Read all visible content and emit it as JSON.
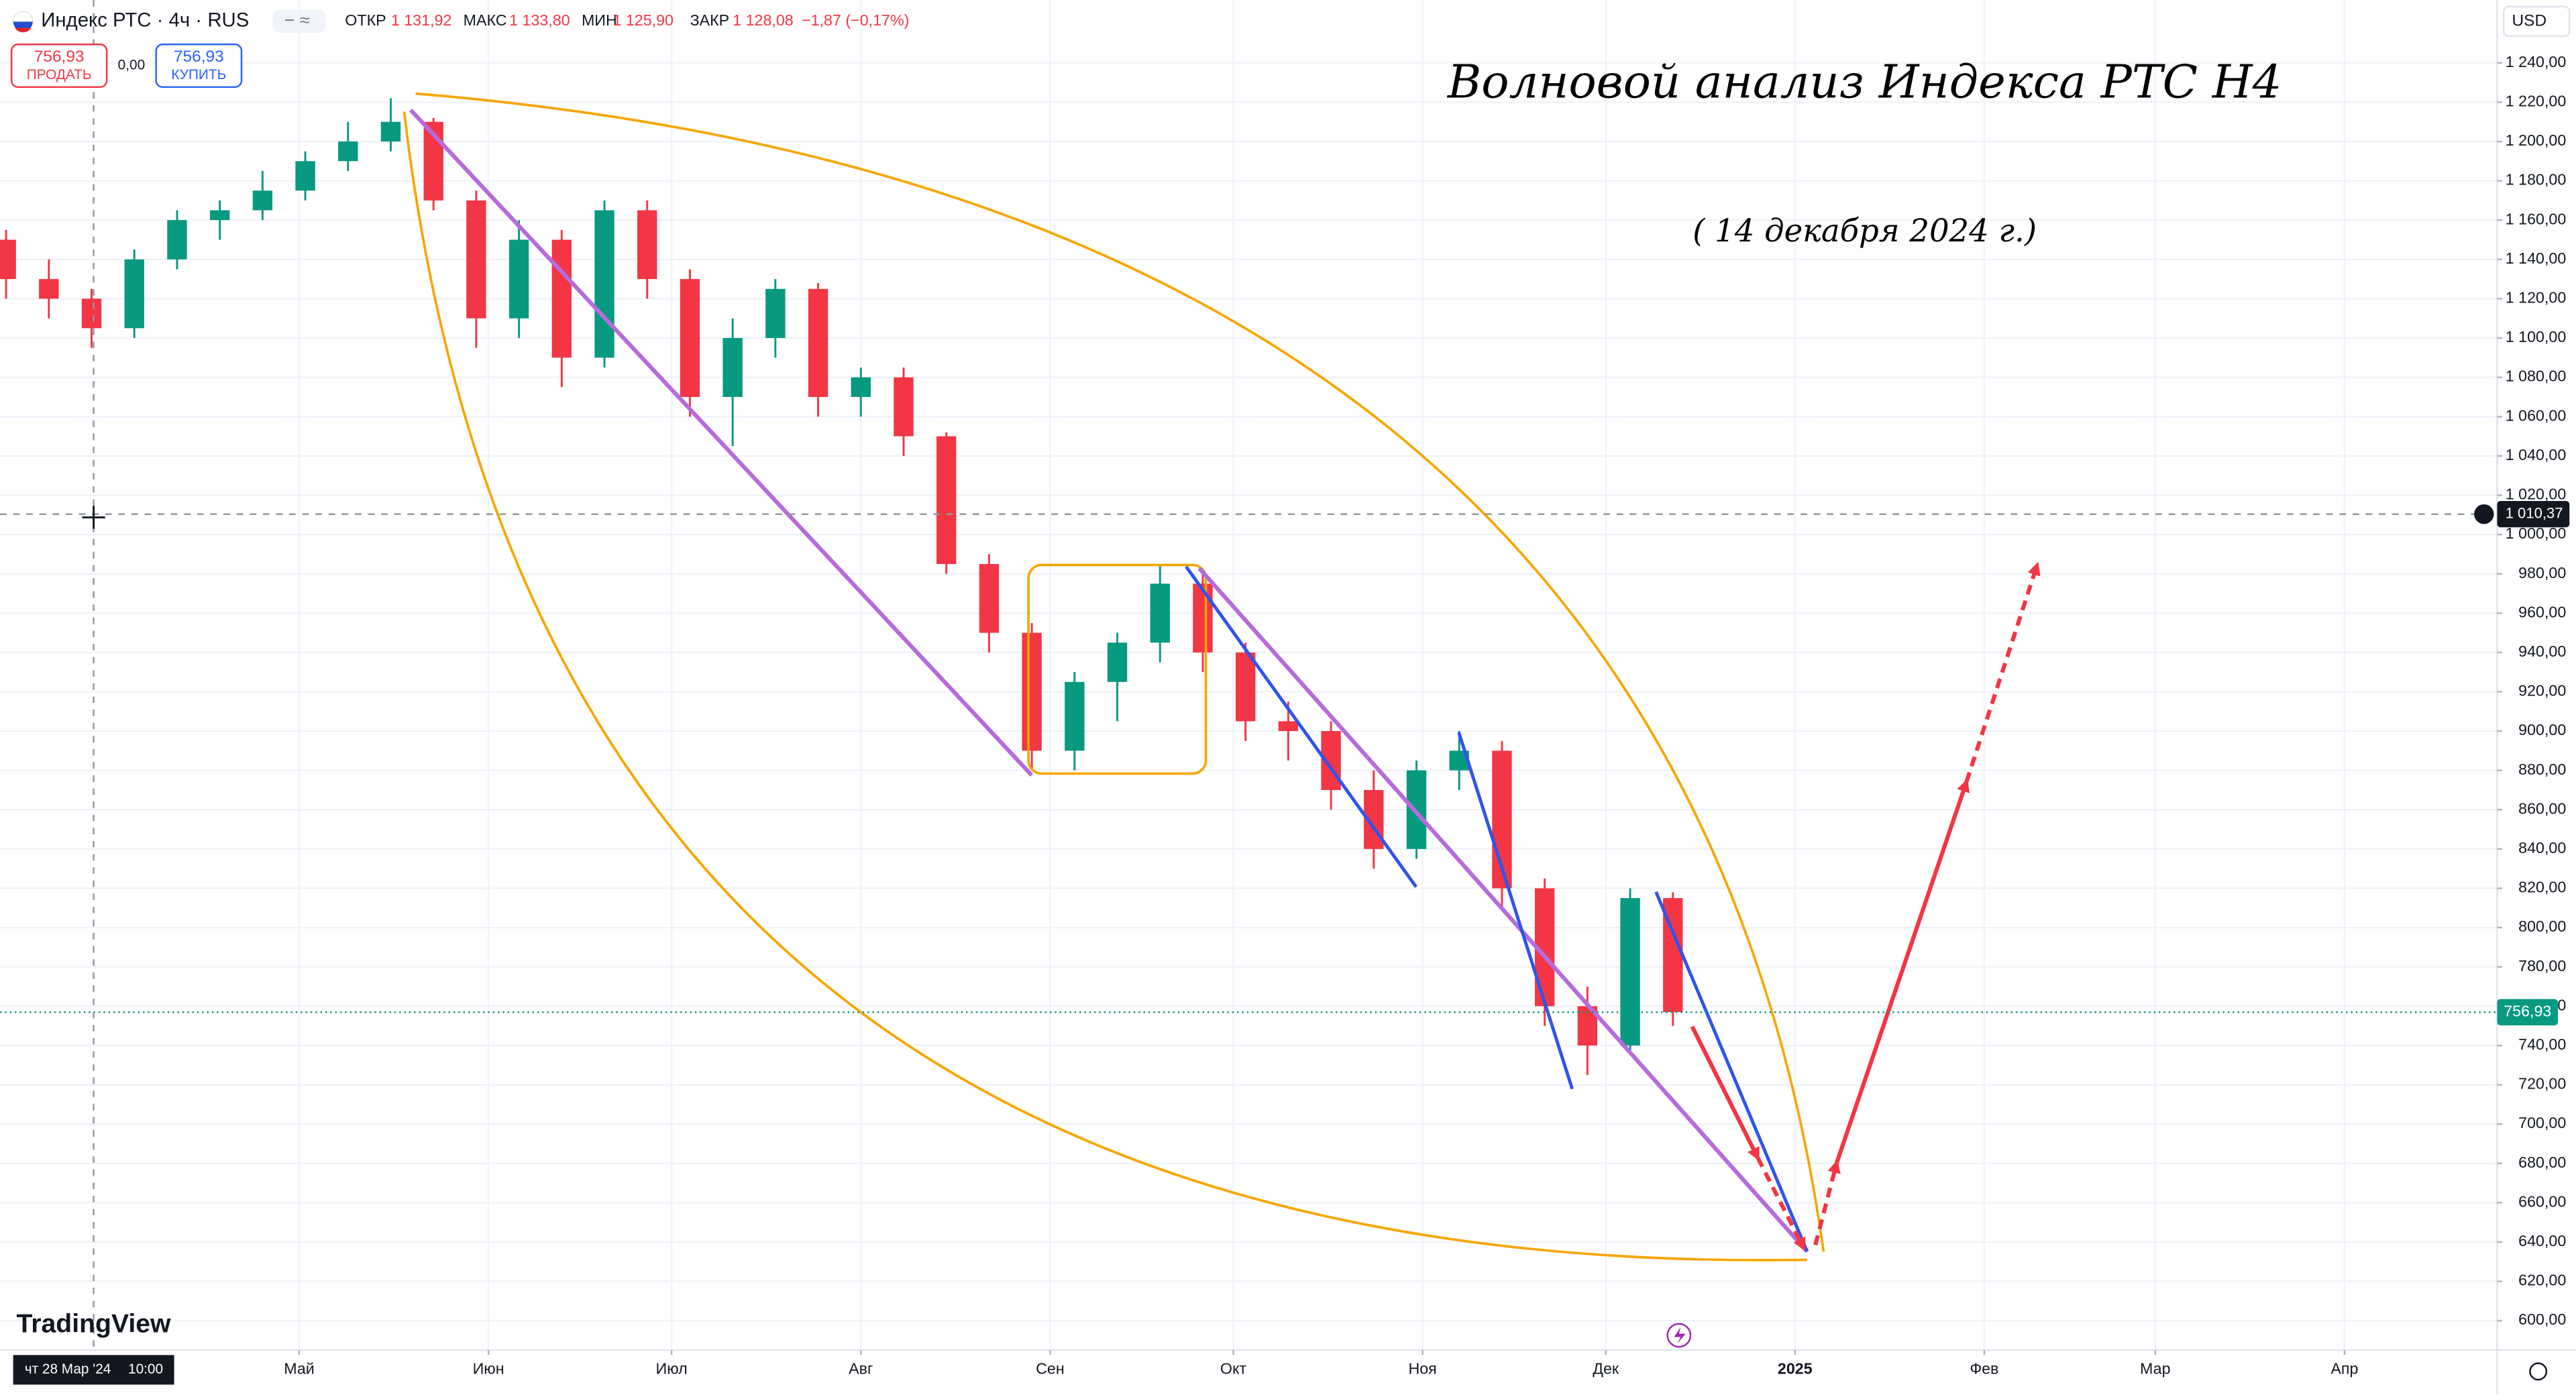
{
  "header": {
    "symbol": "Индекс РТС · 4ч · RUS",
    "open_label": "ОТКР",
    "open": "1 131,92",
    "high_label": "МАКС",
    "high": "1 133,80",
    "low_label": "МИН",
    "low": "1 125,90",
    "close_label": "ЗАКР",
    "close": "1 128,08",
    "change": "−1,87 (−0,17%)"
  },
  "trade": {
    "sell_price": "756,93",
    "sell_label": "ПРОДАТЬ",
    "spread": "0,00",
    "buy_price": "756,93",
    "buy_label": "КУПИТЬ"
  },
  "brand": "TradingView",
  "chart_data": {
    "type": "candlestick",
    "title": "Волновой анализ Индекса РТС Н4",
    "subtitle": "( 14 декабря 2024 г.)",
    "currency": "USD",
    "x": [
      -14,
      -7,
      0,
      7,
      14,
      21,
      28,
      35,
      42,
      49,
      56,
      63,
      70,
      77,
      84,
      91,
      98,
      105,
      112,
      119,
      126,
      133,
      140,
      147,
      154,
      161,
      168,
      175,
      182,
      189,
      196,
      203,
      210,
      217,
      224,
      231,
      238,
      245,
      252,
      259
    ],
    "open": [
      1150,
      1130,
      1120,
      1105,
      1140,
      1160,
      1165,
      1175,
      1190,
      1200,
      1210,
      1170,
      1110,
      1150,
      1090,
      1165,
      1130,
      1070,
      1100,
      1125,
      1070,
      1080,
      1050,
      985,
      950,
      890,
      925,
      945,
      975,
      940,
      905,
      900,
      870,
      840,
      880,
      890,
      820,
      760,
      740,
      815
    ],
    "high": [
      1155,
      1140,
      1125,
      1145,
      1165,
      1170,
      1185,
      1195,
      1210,
      1222,
      1212,
      1175,
      1160,
      1155,
      1170,
      1170,
      1135,
      1110,
      1130,
      1128,
      1085,
      1085,
      1052,
      990,
      955,
      930,
      950,
      985,
      980,
      945,
      915,
      905,
      880,
      885,
      900,
      895,
      825,
      770,
      820,
      818
    ],
    "low": [
      1120,
      1110,
      1095,
      1100,
      1135,
      1150,
      1160,
      1170,
      1185,
      1195,
      1165,
      1095,
      1100,
      1075,
      1085,
      1120,
      1060,
      1045,
      1090,
      1060,
      1060,
      1040,
      980,
      940,
      880,
      880,
      905,
      935,
      930,
      895,
      885,
      860,
      830,
      835,
      870,
      810,
      750,
      725,
      735,
      750
    ],
    "close": [
      1130,
      1120,
      1105,
      1140,
      1160,
      1165,
      1175,
      1190,
      1200,
      1210,
      1170,
      1110,
      1150,
      1090,
      1165,
      1130,
      1070,
      1100,
      1125,
      1070,
      1080,
      1050,
      985,
      950,
      890,
      925,
      945,
      975,
      940,
      905,
      900,
      870,
      840,
      880,
      890,
      820,
      760,
      740,
      815,
      757
    ],
    "up_color": "#089981",
    "down_color": "#f23645",
    "xlim": [
      -15,
      394
    ],
    "xticks": [
      {
        "value": 34,
        "label": "Май"
      },
      {
        "value": 65,
        "label": "Июн"
      },
      {
        "value": 95,
        "label": "Июл"
      },
      {
        "value": 126,
        "label": "Авг"
      },
      {
        "value": 157,
        "label": "Сен"
      },
      {
        "value": 187,
        "label": "Окт"
      },
      {
        "value": 218,
        "label": "Ноя"
      },
      {
        "value": 248,
        "label": "Дек"
      },
      {
        "value": 279,
        "label": "2025"
      },
      {
        "value": 310,
        "label": "Фев"
      },
      {
        "value": 338,
        "label": "Мар"
      },
      {
        "value": 369,
        "label": "Апр"
      }
    ],
    "ylim": [
      585,
      1272
    ],
    "yticks": [
      {
        "value": 600,
        "label": "600,00"
      },
      {
        "value": 620,
        "label": "620,00"
      },
      {
        "value": 640,
        "label": "640,00"
      },
      {
        "value": 660,
        "label": "660,00"
      },
      {
        "value": 680,
        "label": "680,00"
      },
      {
        "value": 700,
        "label": "700,00"
      },
      {
        "value": 720,
        "label": "720,00"
      },
      {
        "value": 740,
        "label": "740,00"
      },
      {
        "value": 760,
        "label": "760,00"
      },
      {
        "value": 780,
        "label": "780,00"
      },
      {
        "value": 800,
        "label": "800,00"
      },
      {
        "value": 820,
        "label": "820,00"
      },
      {
        "value": 840,
        "label": "840,00"
      },
      {
        "value": 860,
        "label": "860,00"
      },
      {
        "value": 880,
        "label": "880,00"
      },
      {
        "value": 900,
        "label": "900,00"
      },
      {
        "value": 920,
        "label": "920,00"
      },
      {
        "value": 940,
        "label": "940,00"
      },
      {
        "value": 960,
        "label": "960,00"
      },
      {
        "value": 980,
        "label": "980,00"
      },
      {
        "value": 1000,
        "label": "1 000,00"
      },
      {
        "value": 1020,
        "label": "1 020,00"
      },
      {
        "value": 1040,
        "label": "1 040,00"
      },
      {
        "value": 1060,
        "label": "1 060,00"
      },
      {
        "value": 1080,
        "label": "1 080,00"
      },
      {
        "value": 1100,
        "label": "1 100,00"
      },
      {
        "value": 1120,
        "label": "1 120,00"
      },
      {
        "value": 1140,
        "label": "1 140,00"
      },
      {
        "value": 1160,
        "label": "1 160,00"
      },
      {
        "value": 1180,
        "label": "1 180,00"
      },
      {
        "value": 1200,
        "label": "1 200,00"
      },
      {
        "value": 1220,
        "label": "1 220,00"
      },
      {
        "value": 1240,
        "label": "1 240,00"
      }
    ],
    "grid": true,
    "last_price": {
      "value": 756.93,
      "label": "756,93"
    },
    "crosshair": {
      "price": {
        "value": 1010.37,
        "label": "1 010,37"
      },
      "time": "чт 28 Мар '24",
      "clock": "10:00"
    }
  }
}
